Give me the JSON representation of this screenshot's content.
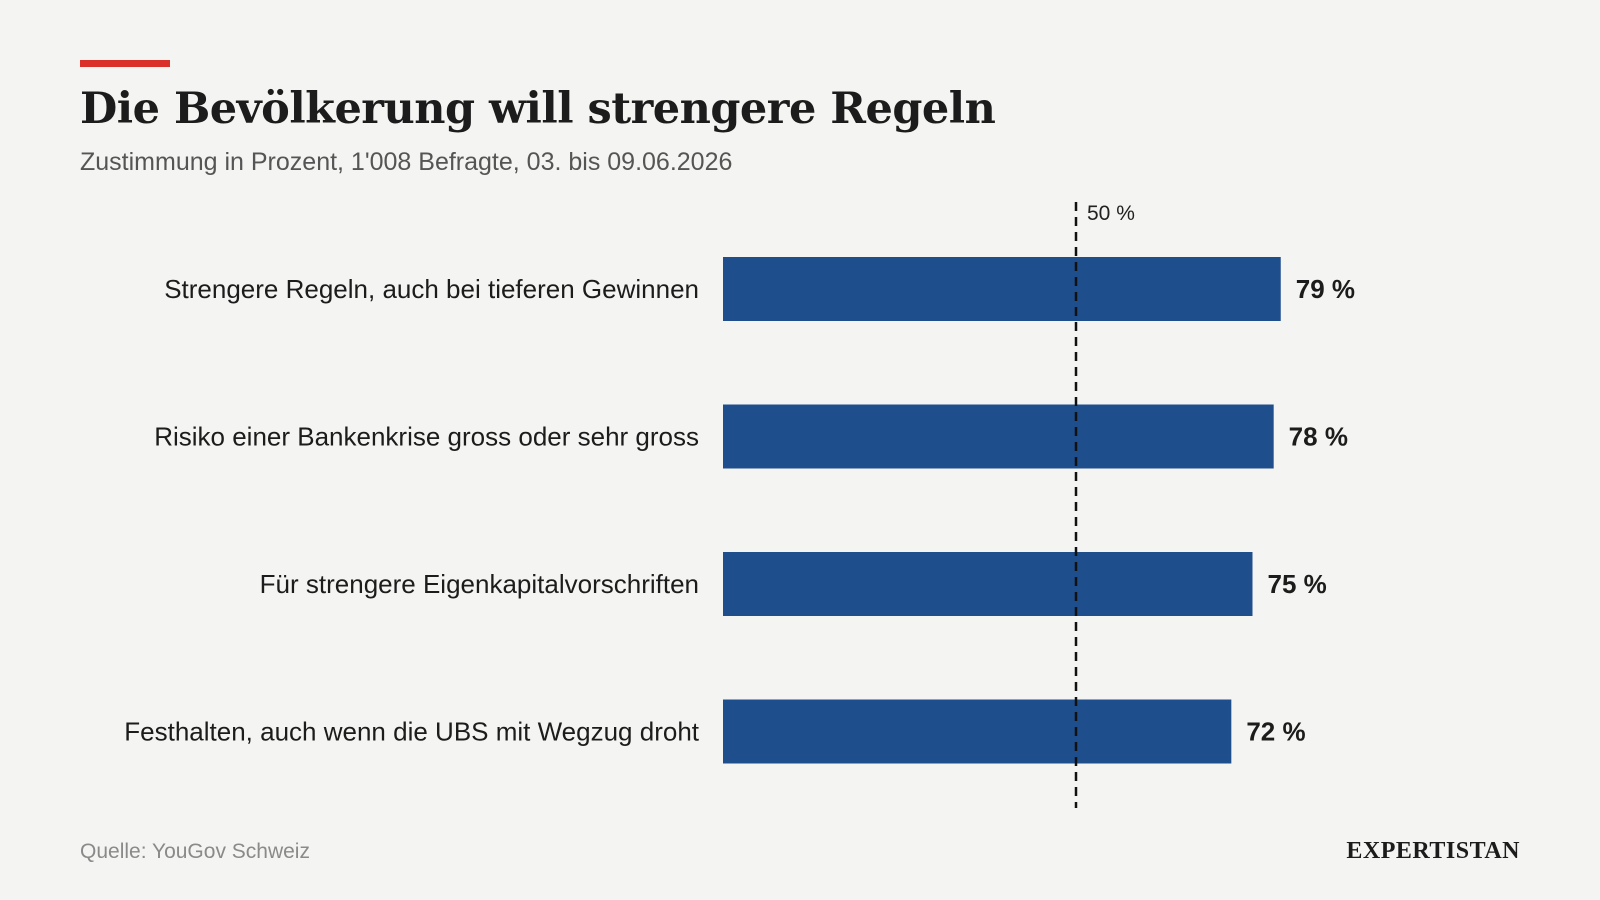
{
  "header": {
    "title": "Die Bevölkerung will strengere Regeln",
    "subtitle": "Zustimmung in Prozent, 1'008 Befragte, 03. bis 09.06.2026"
  },
  "footer": {
    "source": "Quelle: YouGov Schweiz",
    "brand": "EXPERTISTAN"
  },
  "colors": {
    "accent": "#d9302a",
    "bar": "#1f4e8c",
    "background": "#f4f4f2"
  },
  "chart_data": {
    "type": "bar",
    "orientation": "horizontal",
    "title": "Die Bevölkerung will strengere Regeln",
    "subtitle": "Zustimmung in Prozent, 1'008 Befragte, 03. bis 09.06.2026",
    "categories": [
      "Strengere Regeln, auch bei tieferen Gewinnen",
      "Risiko einer Bankenkrise gross oder sehr gross",
      "Für strengere Eigenkapitalvorschriften",
      "Festhalten, auch wenn die UBS mit Wegzug droht"
    ],
    "values": [
      79,
      78,
      75,
      72
    ],
    "value_labels": [
      "79 %",
      "78 %",
      "75 %",
      "72 %"
    ],
    "xlim": [
      0,
      100
    ],
    "reference_line": {
      "value": 50,
      "label": "50 %",
      "style": "dashed"
    },
    "grid": false,
    "legend": "none"
  }
}
